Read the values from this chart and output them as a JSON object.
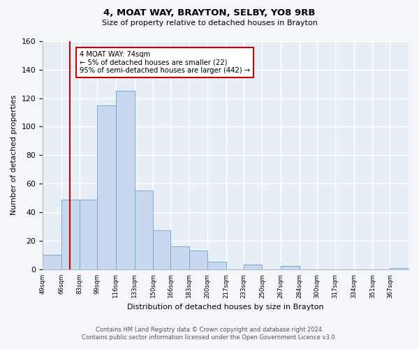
{
  "title": "4, MOAT WAY, BRAYTON, SELBY, YO8 9RB",
  "subtitle": "Size of property relative to detached houses in Brayton",
  "xlabel": "Distribution of detached houses by size in Brayton",
  "ylabel": "Number of detached properties",
  "bins": [
    49,
    66,
    83,
    99,
    116,
    133,
    150,
    166,
    183,
    200,
    217,
    233,
    250,
    267,
    284,
    300,
    317,
    334,
    351,
    367,
    384
  ],
  "counts": [
    10,
    49,
    49,
    115,
    125,
    55,
    27,
    16,
    13,
    5,
    0,
    3,
    0,
    2,
    0,
    0,
    0,
    0,
    0,
    1
  ],
  "bar_color": "#c8d8ee",
  "bar_edge_color": "#7aaac8",
  "ylim": [
    0,
    160
  ],
  "yticks": [
    0,
    20,
    40,
    60,
    80,
    100,
    120,
    140,
    160
  ],
  "vline_x": 74,
  "vline_color": "#cc0000",
  "annotation_title": "4 MOAT WAY: 74sqm",
  "annotation_line1": "← 5% of detached houses are smaller (22)",
  "annotation_line2": "95% of semi-detached houses are larger (442) →",
  "annotation_box_edge": "#cc0000",
  "footer_line1": "Contains HM Land Registry data © Crown copyright and database right 2024.",
  "footer_line2": "Contains public sector information licensed under the Open Government Licence v3.0.",
  "bg_color": "#f4f6fa",
  "plot_bg_color": "#e8eef6"
}
